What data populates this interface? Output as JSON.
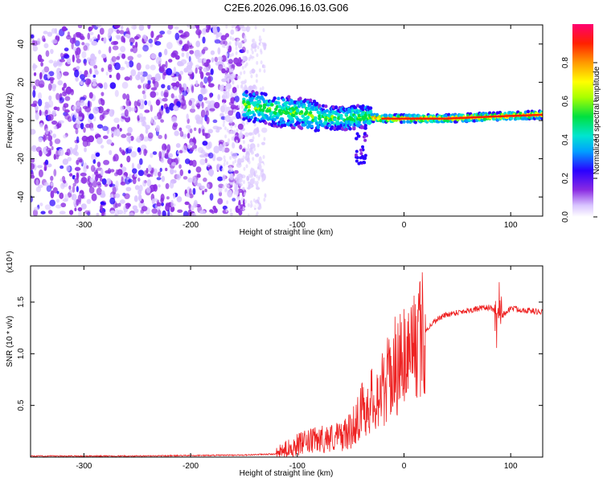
{
  "title": "C2E6.2026.096.16.03.G06",
  "chart_data": [
    {
      "type": "heatmap",
      "name": "spectrogram",
      "xlabel": "Height of straight line (km)",
      "ylabel": "Frequency (Hz)",
      "xlim": [
        -350,
        130
      ],
      "ylim": [
        -50,
        50
      ],
      "xticks": [
        -300,
        -200,
        -100,
        0,
        100
      ],
      "yticks": [
        -40,
        -20,
        0,
        20,
        40
      ],
      "noise_region_x": [
        -350,
        -150
      ],
      "signal_trace": [
        {
          "x": -150,
          "f": 8
        },
        {
          "x": -120,
          "f": 5
        },
        {
          "x": -100,
          "f": 4
        },
        {
          "x": -80,
          "f": 2
        },
        {
          "x": -60,
          "f": 1
        },
        {
          "x": -40,
          "f": 2
        },
        {
          "x": -20,
          "f": 1
        },
        {
          "x": 0,
          "f": 1
        },
        {
          "x": 40,
          "f": 1
        },
        {
          "x": 80,
          "f": 2
        },
        {
          "x": 130,
          "f": 3
        }
      ],
      "colorbar": {
        "label": "Normalized spectral amplitude",
        "range": [
          0,
          1
        ],
        "ticks": [
          0.0,
          0.2,
          0.4,
          0.6,
          0.8
        ],
        "colors": [
          "#ffffff",
          "#d9c4ff",
          "#8a2be2",
          "#2a00ff",
          "#00a0ff",
          "#00e5d0",
          "#00e040",
          "#a8ff00",
          "#ffff00",
          "#ff9a00",
          "#ff2000",
          "#ff0070"
        ]
      }
    },
    {
      "type": "line",
      "name": "snr",
      "xlabel": "Height of straight line (km)",
      "ylabel": "SNR (10 * v/v)",
      "yscale_label": "(x10⁴)",
      "xlim": [
        -350,
        130
      ],
      "ylim": [
        0,
        1.85
      ],
      "xticks": [
        -300,
        -200,
        -100,
        0,
        100
      ],
      "yticks": [
        0.5,
        1.0,
        1.5
      ],
      "ytick_labels": [
        "0.5",
        "1.0",
        "1.5"
      ],
      "line_color": "#ee2222",
      "series": [
        {
          "x": -350,
          "y": 0.01
        },
        {
          "x": -250,
          "y": 0.01
        },
        {
          "x": -150,
          "y": 0.02
        },
        {
          "x": -120,
          "y": 0.03
        },
        {
          "x": -100,
          "y": 0.12
        },
        {
          "x": -80,
          "y": 0.17
        },
        {
          "x": -60,
          "y": 0.2
        },
        {
          "x": -50,
          "y": 0.25
        },
        {
          "x": -40,
          "y": 0.45
        },
        {
          "x": -30,
          "y": 0.55
        },
        {
          "x": -20,
          "y": 0.65
        },
        {
          "x": -10,
          "y": 0.85
        },
        {
          "x": 0,
          "y": 1.0
        },
        {
          "x": 10,
          "y": 1.1
        },
        {
          "x": 20,
          "y": 1.22
        },
        {
          "x": 30,
          "y": 1.33
        },
        {
          "x": 40,
          "y": 1.38
        },
        {
          "x": 60,
          "y": 1.42
        },
        {
          "x": 80,
          "y": 1.45
        },
        {
          "x": 90,
          "y": 1.35
        },
        {
          "x": 100,
          "y": 1.44
        },
        {
          "x": 130,
          "y": 1.4
        }
      ]
    }
  ]
}
